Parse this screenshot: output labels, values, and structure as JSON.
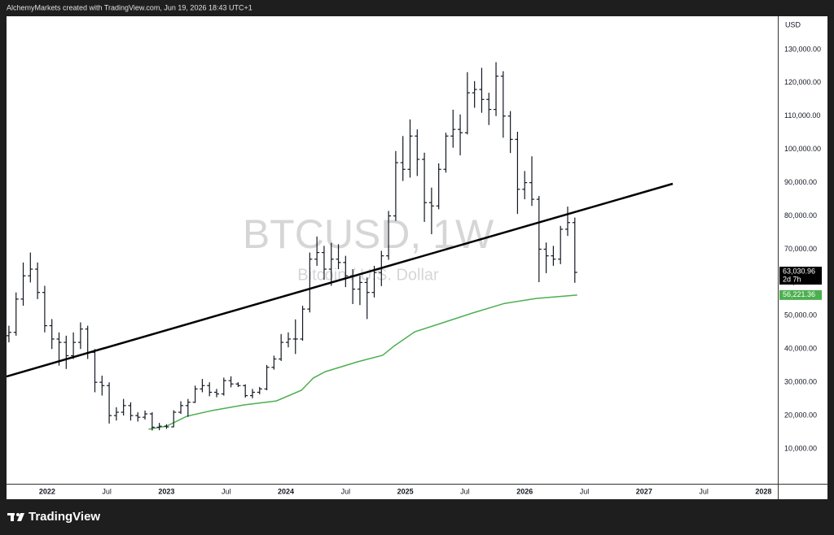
{
  "header": {
    "text": "AlchemyMarkets created with TradingView.com, Jun 19, 2026 18:43 UTC+1"
  },
  "footer": {
    "brand": "TradingView"
  },
  "chart_data": {
    "type": "ohlc",
    "symbol": "BTCUSD, 1W",
    "description": "Bitcoin / U.S. Dollar",
    "currency": "USD",
    "color": "#131722",
    "grid": false,
    "xlim": [
      2021.66,
      2028.12
    ],
    "xticks": [
      2022,
      {
        "value": 2022.5,
        "label": "Jul"
      },
      2023,
      {
        "value": 2023.5,
        "label": "Jul"
      },
      2024,
      {
        "value": 2024.5,
        "label": "Jul"
      },
      2025,
      {
        "value": 2025.5,
        "label": "Jul"
      },
      2026,
      {
        "value": 2026.5,
        "label": "Jul"
      },
      2027,
      {
        "value": 2027.5,
        "label": "Jul"
      },
      2028
    ],
    "ylim": [
      -500,
      140000
    ],
    "yticks": [
      {
        "value": 10000,
        "label": "10,000.00"
      },
      {
        "value": 20000,
        "label": "20,000.00"
      },
      {
        "value": 30000,
        "label": "30,000.00"
      },
      {
        "value": 40000,
        "label": "40,000.00"
      },
      {
        "value": 50000,
        "label": "50,000.00"
      },
      {
        "value": 60000,
        "label": "60,000.00"
      },
      {
        "value": 70000,
        "label": "70,000.00"
      },
      {
        "value": 80000,
        "label": "80,000.00"
      },
      {
        "value": 90000,
        "label": "90,000.00"
      },
      {
        "value": 100000,
        "label": "100,000.00"
      },
      {
        "value": 110000,
        "label": "110,000.00"
      },
      {
        "value": 120000,
        "label": "120,000.00"
      },
      {
        "value": 130000,
        "label": "130,000.00"
      }
    ],
    "x": [
      2021.68,
      2021.74,
      2021.8,
      2021.86,
      2021.92,
      2021.98,
      2022.04,
      2022.1,
      2022.16,
      2022.22,
      2022.28,
      2022.34,
      2022.4,
      2022.46,
      2022.52,
      2022.58,
      2022.64,
      2022.7,
      2022.76,
      2022.82,
      2022.88,
      2022.94,
      2023.0,
      2023.06,
      2023.12,
      2023.18,
      2023.24,
      2023.3,
      2023.36,
      2023.42,
      2023.48,
      2023.54,
      2023.6,
      2023.66,
      2023.72,
      2023.78,
      2023.84,
      2023.9,
      2023.96,
      2024.02,
      2024.08,
      2024.14,
      2024.2,
      2024.26,
      2024.32,
      2024.38,
      2024.44,
      2024.5,
      2024.56,
      2024.62,
      2024.68,
      2024.74,
      2024.8,
      2024.86,
      2024.92,
      2024.98,
      2025.04,
      2025.1,
      2025.16,
      2025.22,
      2025.28,
      2025.34,
      2025.4,
      2025.46,
      2025.52,
      2025.58,
      2025.64,
      2025.7,
      2025.76,
      2025.82,
      2025.88,
      2025.94,
      2026.0,
      2026.06,
      2026.12,
      2026.18,
      2026.24,
      2026.3,
      2026.36,
      2026.42
    ],
    "open": [
      44000,
      45000,
      55000,
      62000,
      64000,
      57000,
      47000,
      43000,
      42000,
      38000,
      42000,
      46000,
      39000,
      30000,
      29000,
      20000,
      21000,
      23000,
      20000,
      19500,
      20500,
      16500,
      16800,
      16600,
      21000,
      23000,
      24000,
      28000,
      29000,
      27000,
      26500,
      30500,
      29500,
      29000,
      26000,
      27000,
      28000,
      34500,
      37000,
      42000,
      43000,
      43000,
      52000,
      67000,
      69000,
      64000,
      67000,
      66000,
      62000,
      58000,
      60000,
      57000,
      63000,
      68000,
      80000,
      96000,
      94000,
      104000,
      97000,
      84000,
      83000,
      94000,
      104000,
      106000,
      105000,
      117000,
      118000,
      115000,
      112000,
      122000,
      110000,
      103000,
      88000,
      90000,
      85000,
      70000,
      68000,
      67000,
      76000,
      78000
    ],
    "high": [
      47000,
      57000,
      66000,
      69000,
      66000,
      59000,
      49000,
      45000,
      44000,
      45000,
      48000,
      47000,
      40000,
      32000,
      30000,
      22500,
      25000,
      24000,
      21000,
      21500,
      21000,
      17800,
      17400,
      21600,
      24300,
      25000,
      29000,
      31000,
      30000,
      28000,
      31400,
      31800,
      30000,
      29400,
      28000,
      28600,
      35200,
      38000,
      44500,
      45000,
      48900,
      53000,
      69000,
      73800,
      71000,
      71900,
      71500,
      68000,
      64000,
      62000,
      61500,
      65000,
      69500,
      81500,
      99500,
      104000,
      109000,
      106000,
      99000,
      88500,
      95800,
      105000,
      111900,
      110500,
      123200,
      120500,
      124500,
      117000,
      126200,
      123500,
      111500,
      105300,
      93500,
      97900,
      86000,
      72000,
      71000,
      77000,
      82800,
      79500
    ],
    "low": [
      42000,
      44000,
      53000,
      60000,
      55000,
      45000,
      40000,
      35000,
      34000,
      37000,
      40000,
      37000,
      27000,
      26000,
      17600,
      18500,
      20000,
      18500,
      18200,
      18800,
      15500,
      15600,
      16000,
      16500,
      20500,
      19600,
      23800,
      27000,
      25800,
      25500,
      26000,
      28500,
      28600,
      25400,
      25200,
      26400,
      27600,
      33800,
      36400,
      40500,
      38500,
      42500,
      51000,
      65000,
      60800,
      59000,
      64000,
      58600,
      53500,
      53200,
      49000,
      55500,
      58900,
      66800,
      78500,
      90500,
      91500,
      92000,
      78200,
      74500,
      82000,
      93000,
      100500,
      98200,
      104500,
      112500,
      111000,
      107300,
      110000,
      103500,
      98900,
      80600,
      85000,
      83000,
      60100,
      62800,
      65000,
      65500,
      74000,
      59900
    ],
    "close": [
      45000,
      55000,
      62000,
      64000,
      57000,
      47000,
      43000,
      42000,
      38000,
      42000,
      46000,
      39000,
      30000,
      29000,
      20000,
      21000,
      23000,
      20000,
      19500,
      20500,
      16500,
      16800,
      16600,
      21000,
      23000,
      24000,
      28000,
      29000,
      27000,
      26500,
      30500,
      29500,
      29000,
      26000,
      27000,
      28000,
      34500,
      37000,
      42000,
      43000,
      43000,
      52000,
      67000,
      69000,
      64000,
      67000,
      66000,
      62000,
      58000,
      60000,
      57000,
      63000,
      68000,
      80000,
      96000,
      94000,
      104000,
      97000,
      84000,
      83000,
      94000,
      104000,
      106000,
      105000,
      117000,
      118000,
      115000,
      112000,
      122000,
      110000,
      103000,
      88000,
      90000,
      85000,
      70000,
      68000,
      67000,
      76000,
      78000,
      63030.96
    ],
    "last_price": {
      "value": 63030.96,
      "label": "63,030.96"
    },
    "countdown": "2d 7h",
    "trendline": {
      "x": [
        2021.66,
        2027.24
      ],
      "y": [
        31750,
        89670
      ],
      "color": "#000000"
    },
    "moving_average": {
      "color": "#4caf50",
      "x": [
        2022.85,
        2023.0,
        2023.17,
        2023.38,
        2023.65,
        2023.92,
        2024.13,
        2024.23,
        2024.33,
        2024.6,
        2024.81,
        2024.91,
        2025.08,
        2025.29,
        2025.56,
        2025.83,
        2026.1,
        2026.44
      ],
      "values": [
        15900,
        16800,
        19800,
        21500,
        23200,
        24400,
        27600,
        31300,
        33200,
        36150,
        38100,
        41000,
        45200,
        47600,
        50800,
        53700,
        55200,
        56221.36
      ],
      "last": {
        "value": 56221.36,
        "label": "56,221.36"
      }
    }
  }
}
